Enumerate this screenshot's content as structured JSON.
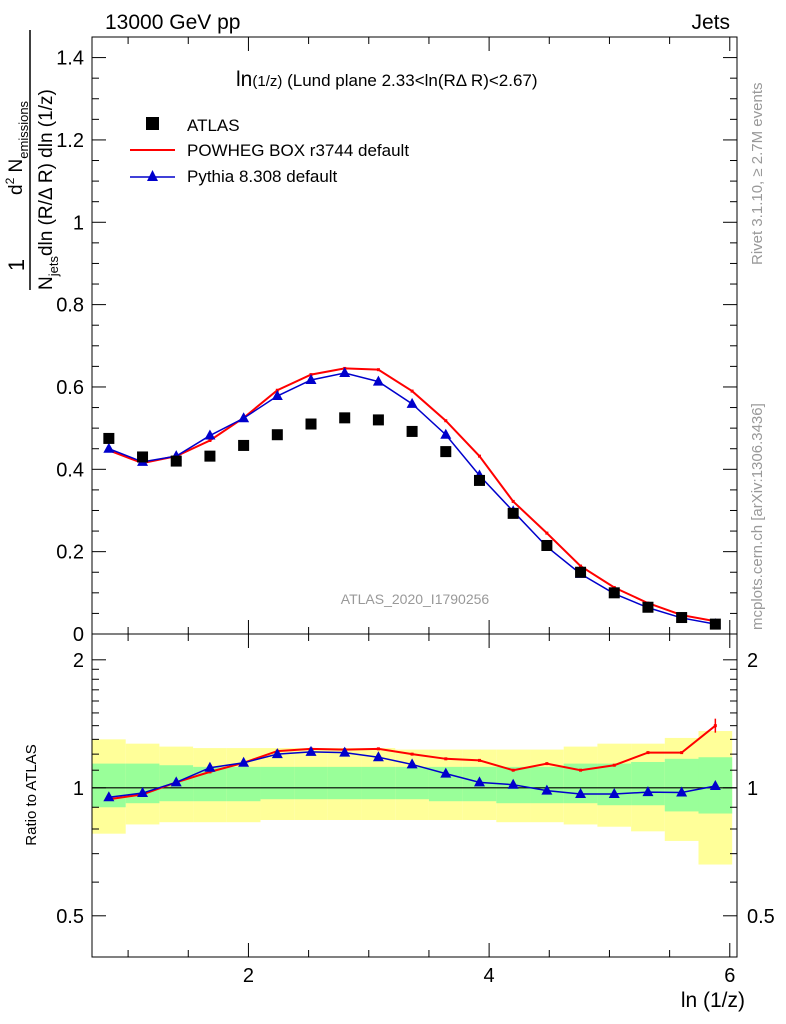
{
  "header": {
    "left": "13000 GeV pp",
    "right": "Jets"
  },
  "plot_title": {
    "main": "ln",
    "sub": "(1/z)",
    "rest": " (Lund plane 2.33<ln(RΔ R)<2.67)"
  },
  "watermark": "ATLAS_2020_I1790256",
  "side_labels": {
    "rivet": "Rivet 3.1.10, ≥ 2.7M events",
    "mcplots": "mcplots.cern.ch [arXiv:1306.3436]"
  },
  "y_axis_label": {
    "one": "1",
    "njets": "N",
    "njets_sub": "jets",
    "dln": "dln (R/Δ R)",
    "numerator": "d",
    "numerator_sup": "2",
    "nemis": " N",
    "nemis_sub": "emissions",
    "denominator": "dln (R/Δ R) dln (1/z)"
  },
  "ratio_ylabel": "Ratio to ATLAS",
  "x_axis_label": "ln (1/z)",
  "colors": {
    "data": "#000000",
    "powheg": "#ff0000",
    "pythia": "#0000cc",
    "band_outer": "#ffff99",
    "band_inner": "#99ff99"
  },
  "chart_data": [
    {
      "type": "scatter",
      "panel": "main",
      "x": [
        0.84,
        1.12,
        1.4,
        1.68,
        1.96,
        2.24,
        2.52,
        2.8,
        3.08,
        3.36,
        3.64,
        3.92,
        4.2,
        4.48,
        4.76,
        5.04,
        5.32,
        5.6,
        5.88
      ],
      "xlim": [
        0.7,
        6.06
      ],
      "ylim": [
        0,
        1.45
      ],
      "yticks": [
        "0",
        "0.2",
        "0.4",
        "0.6",
        "0.8",
        "1",
        "1.2",
        "1.4"
      ],
      "xticks": [
        "2",
        "4",
        "6"
      ],
      "series": [
        {
          "name": "ATLAS",
          "values": [
            0.475,
            0.43,
            0.42,
            0.432,
            0.458,
            0.484,
            0.51,
            0.525,
            0.52,
            0.492,
            0.443,
            0.373,
            0.293,
            0.215,
            0.15,
            0.1,
            0.065,
            0.04,
            0.024
          ]
        },
        {
          "name": "POWHEG BOX r3744 default",
          "values": [
            0.446,
            0.415,
            0.432,
            0.47,
            0.525,
            0.592,
            0.63,
            0.645,
            0.642,
            0.59,
            0.518,
            0.432,
            0.322,
            0.245,
            0.165,
            0.113,
            0.075,
            0.046,
            0.031
          ]
        },
        {
          "name": "Pythia 8.308 default",
          "values": [
            0.45,
            0.418,
            0.432,
            0.482,
            0.524,
            0.578,
            0.617,
            0.634,
            0.613,
            0.559,
            0.484,
            0.385,
            0.298,
            0.212,
            0.146,
            0.098,
            0.064,
            0.039,
            0.024
          ]
        }
      ]
    },
    {
      "type": "line",
      "panel": "ratio",
      "xlim": [
        0.7,
        6.06
      ],
      "ylim": [
        0.4,
        2.3
      ],
      "log_y": true,
      "yticks": [
        "0.5",
        "1",
        "2"
      ],
      "series": [
        {
          "name": "POWHEG BOX r3744 default",
          "values": [
            0.94,
            0.965,
            1.03,
            1.09,
            1.145,
            1.22,
            1.235,
            1.23,
            1.235,
            1.2,
            1.17,
            1.16,
            1.1,
            1.14,
            1.1,
            1.13,
            1.21,
            1.21,
            1.4
          ]
        },
        {
          "name": "Pythia 8.308 default",
          "values": [
            0.95,
            0.972,
            1.03,
            1.115,
            1.145,
            1.2,
            1.215,
            1.21,
            1.18,
            1.135,
            1.08,
            1.03,
            1.017,
            0.985,
            0.967,
            0.967,
            0.977,
            0.975,
            1.01
          ]
        }
      ],
      "band_inner": [
        [
          0.9,
          1.14
        ],
        [
          0.92,
          1.14
        ],
        [
          0.93,
          1.13
        ],
        [
          0.93,
          1.12
        ],
        [
          0.93,
          1.12
        ],
        [
          0.94,
          1.12
        ],
        [
          0.94,
          1.12
        ],
        [
          0.94,
          1.12
        ],
        [
          0.94,
          1.12
        ],
        [
          0.94,
          1.12
        ],
        [
          0.93,
          1.12
        ],
        [
          0.93,
          1.12
        ],
        [
          0.92,
          1.12
        ],
        [
          0.92,
          1.12
        ],
        [
          0.92,
          1.14
        ],
        [
          0.91,
          1.14
        ],
        [
          0.91,
          1.15
        ],
        [
          0.88,
          1.17
        ],
        [
          0.87,
          1.18
        ]
      ],
      "band_outer": [
        [
          0.78,
          1.3
        ],
        [
          0.82,
          1.27
        ],
        [
          0.83,
          1.25
        ],
        [
          0.83,
          1.24
        ],
        [
          0.83,
          1.24
        ],
        [
          0.84,
          1.24
        ],
        [
          0.84,
          1.24
        ],
        [
          0.84,
          1.24
        ],
        [
          0.84,
          1.24
        ],
        [
          0.84,
          1.23
        ],
        [
          0.84,
          1.23
        ],
        [
          0.84,
          1.23
        ],
        [
          0.83,
          1.23
        ],
        [
          0.83,
          1.23
        ],
        [
          0.82,
          1.25
        ],
        [
          0.81,
          1.27
        ],
        [
          0.79,
          1.27
        ],
        [
          0.75,
          1.31
        ],
        [
          0.66,
          1.36
        ]
      ]
    }
  ]
}
